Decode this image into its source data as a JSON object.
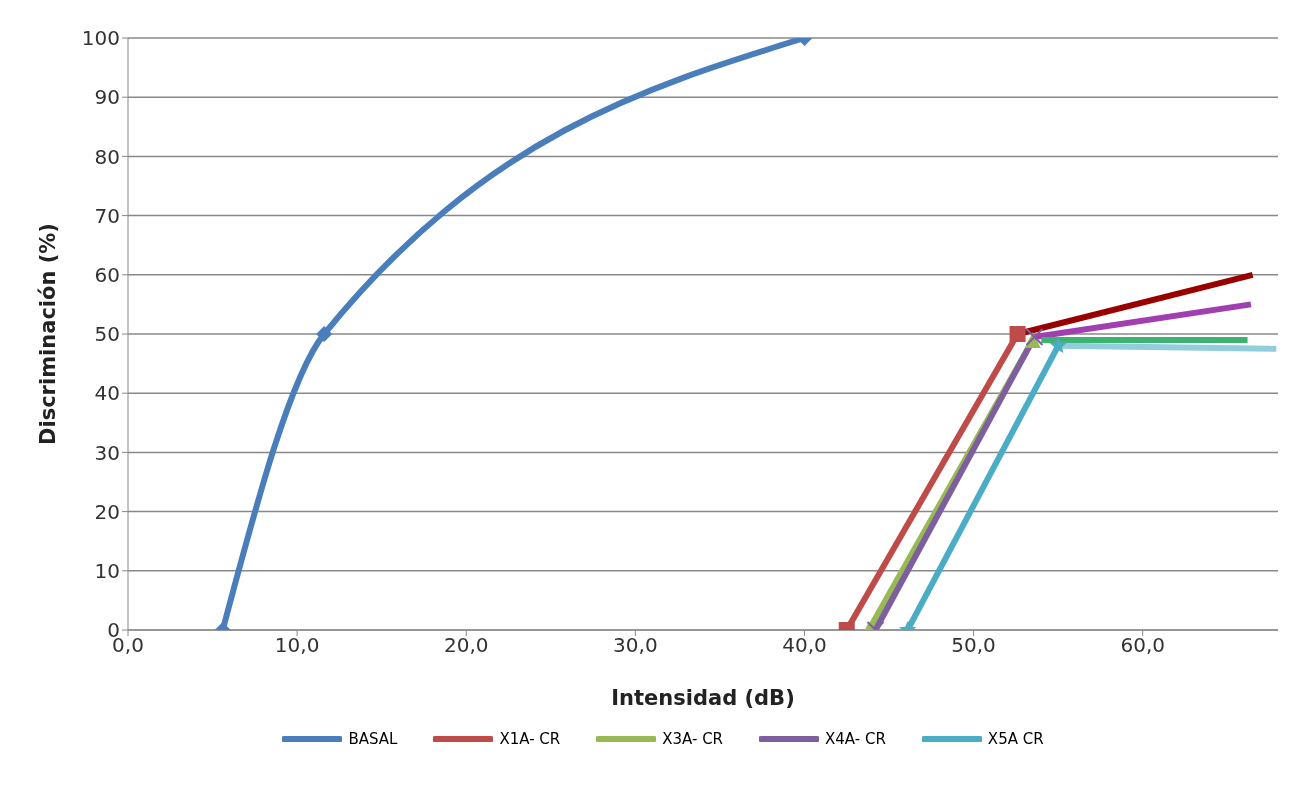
{
  "chart_data": {
    "type": "line",
    "xlabel": "Intensidad  (dB)",
    "ylabel": "Discriminación  (%)",
    "xlim": [
      0,
      68
    ],
    "xticks": [
      {
        "value": 0,
        "label": "0,0"
      },
      {
        "value": 10,
        "label": "10,0"
      },
      {
        "value": 20,
        "label": "20,0"
      },
      {
        "value": 30,
        "label": "30,0"
      },
      {
        "value": 40,
        "label": "40,0"
      },
      {
        "value": 50,
        "label": "50,0"
      },
      {
        "value": 60,
        "label": "60,0"
      }
    ],
    "ylim": [
      0,
      100
    ],
    "yticks": [
      0,
      10,
      20,
      30,
      40,
      50,
      60,
      70,
      80,
      90,
      100
    ],
    "grid": "y",
    "legend": "bottom",
    "series": [
      {
        "name": "BASAL",
        "color": "#4a7ebb",
        "marker": "diamond",
        "x": [
          5.6,
          11.6,
          40
        ],
        "values": [
          0,
          50,
          100
        ]
      },
      {
        "name": "X1A- CR",
        "color": "#be4b48",
        "marker": "square",
        "x": [
          42.5,
          52.6
        ],
        "values": [
          0,
          50
        ]
      },
      {
        "name": "X3A- CR",
        "color": "#98b954",
        "marker": "triangle",
        "x": [
          43.8,
          53.5
        ],
        "values": [
          0,
          49
        ]
      },
      {
        "name": "X4A- CR",
        "color": "#7d5fa0",
        "marker": "cross",
        "x": [
          44.2,
          53.6
        ],
        "values": [
          0,
          49.5
        ]
      },
      {
        "name": "X5A CR",
        "color": "#4bacc6",
        "marker": "star",
        "x": [
          46.1,
          55
        ],
        "values": [
          0,
          48
        ]
      },
      {
        "color": "#990000",
        "marker": "none",
        "x": [
          52.6,
          66.5
        ],
        "values": [
          50,
          60
        ]
      },
      {
        "color": "#a040b0",
        "marker": "none",
        "x": [
          53.6,
          66.4
        ],
        "values": [
          49.5,
          55
        ]
      },
      {
        "color": "#3cb371",
        "marker": "none",
        "x": [
          54,
          66.2
        ],
        "values": [
          49,
          49
        ]
      },
      {
        "color": "#92cddc",
        "marker": "none",
        "x": [
          55,
          67.9
        ],
        "values": [
          48,
          47.5
        ]
      }
    ]
  }
}
